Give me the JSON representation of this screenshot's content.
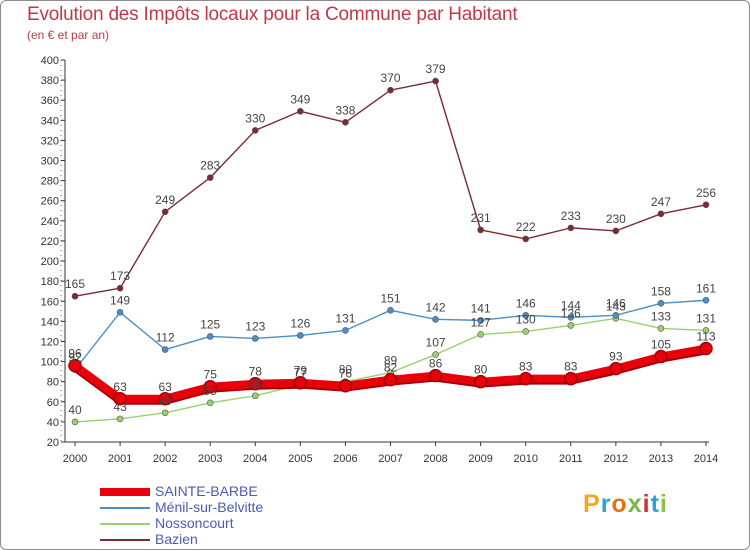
{
  "chart_data": {
    "type": "line",
    "title": "Evolution des Impôts locaux pour la Commune par Habitant",
    "subtitle": "(en € et par an)",
    "xlabel": "",
    "ylabel": "",
    "x": [
      "2000",
      "2001",
      "2002",
      "2003",
      "2004",
      "2005",
      "2006",
      "2007",
      "2008",
      "2009",
      "2010",
      "2011",
      "2012",
      "2013",
      "2014"
    ],
    "ylim": [
      20,
      400
    ],
    "yticks": [
      20,
      40,
      60,
      80,
      100,
      120,
      140,
      160,
      180,
      200,
      220,
      240,
      260,
      280,
      300,
      320,
      340,
      360,
      380,
      400
    ],
    "grid": false,
    "legend_position": "bottom-left",
    "series": [
      {
        "name": "SAINTE-BARBE",
        "color": "#e8000b",
        "values": [
          96,
          63,
          63,
          75,
          78,
          79,
          76,
          82,
          86,
          80,
          83,
          83,
          93,
          105,
          113
        ]
      },
      {
        "name": "Ménil-sur-Belvitte",
        "color": "#4a8fc8",
        "values": [
          92,
          149,
          112,
          125,
          123,
          126,
          131,
          151,
          142,
          141,
          146,
          144,
          146,
          158,
          161
        ]
      },
      {
        "name": "Nossoncourt",
        "color": "#99d170",
        "values": [
          40,
          43,
          49,
          59,
          66,
          77,
          80,
          89,
          107,
          127,
          130,
          136,
          143,
          133,
          131
        ]
      },
      {
        "name": "Bazien",
        "color": "#7a2b32",
        "values": [
          165,
          173,
          249,
          283,
          330,
          349,
          338,
          370,
          379,
          231,
          222,
          233,
          230,
          247,
          256
        ]
      }
    ]
  },
  "logo": {
    "text": "Proxiti",
    "colors": [
      "#f5a623",
      "#2aa3d6",
      "#e8730c",
      "#7ab648",
      "#d62f2f",
      "#2aa3d6",
      "#8bc34a"
    ]
  }
}
